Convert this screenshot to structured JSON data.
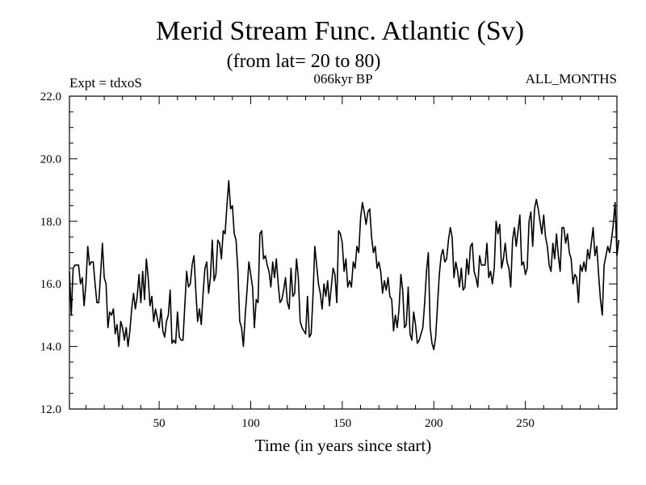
{
  "chart_data": {
    "type": "line",
    "title": "Merid Stream Func. Atlantic (Sv)",
    "subtitle": "(from lat= 20 to 80)",
    "experiment": "Expt = tdxoS",
    "period": "066kyr BP",
    "months": "ALL_MONTHS",
    "xlabel": "Time (in years since start)",
    "ylabel": "",
    "xlim": [
      1,
      300
    ],
    "ylim": [
      12,
      22
    ],
    "x_ticks": [
      50,
      100,
      150,
      200,
      250
    ],
    "y_ticks": [
      12,
      14,
      16,
      18,
      20,
      22
    ],
    "y_tick_labels": [
      "12.0",
      "14.0",
      "16.0",
      "18.0",
      "20.0",
      "22.0"
    ],
    "grid": false,
    "legend": "none",
    "series": [
      {
        "name": "Merid Stream Func.",
        "x_start": 1,
        "x_step": 1,
        "values": [
          16.4,
          15.0,
          16.5,
          16.6,
          16.6,
          16.6,
          16.0,
          16.2,
          15.3,
          16.0,
          17.2,
          16.6,
          16.7,
          16.7,
          16.0,
          15.4,
          15.4,
          16.3,
          17.3,
          16.2,
          16.0,
          14.6,
          15.1,
          15.0,
          15.2,
          14.4,
          14.7,
          14.0,
          14.8,
          14.6,
          14.2,
          14.6,
          14.0,
          14.5,
          15.2,
          15.7,
          15.2,
          15.6,
          16.3,
          15.4,
          16.4,
          15.5,
          16.8,
          16.2,
          15.3,
          15.6,
          14.8,
          15.2,
          14.9,
          14.6,
          15.2,
          14.5,
          14.3,
          14.8,
          15.0,
          15.8,
          14.1,
          14.2,
          14.1,
          15.1,
          14.3,
          14.2,
          14.2,
          15.3,
          16.4,
          15.9,
          16.0,
          16.6,
          16.9,
          15.8,
          14.8,
          15.2,
          14.7,
          15.7,
          16.5,
          16.7,
          15.7,
          16.2,
          17.4,
          16.1,
          16.3,
          17.4,
          17.3,
          16.8,
          17.7,
          17.6,
          18.5,
          19.3,
          18.4,
          18.5,
          17.6,
          17.4,
          16.4,
          14.8,
          14.6,
          14.0,
          15.0,
          15.8,
          16.7,
          16.3,
          15.9,
          14.6,
          15.5,
          15.4,
          17.6,
          17.7,
          16.8,
          16.9,
          16.6,
          16.4,
          15.9,
          16.7,
          16.2,
          16.8,
          16.0,
          15.4,
          15.5,
          15.8,
          16.2,
          15.4,
          15.2,
          16.5,
          15.6,
          15.7,
          16.8,
          16.2,
          14.8,
          14.6,
          14.5,
          14.4,
          15.6,
          14.3,
          14.4,
          15.6,
          17.2,
          16.6,
          16.0,
          15.7,
          15.2,
          16.0,
          15.6,
          16.1,
          15.3,
          15.9,
          16.5,
          16.3,
          15.4,
          17.7,
          17.6,
          17.3,
          16.4,
          16.8,
          15.9,
          16.1,
          15.9,
          16.7,
          16.5,
          17.2,
          17.0,
          18.1,
          18.6,
          18.3,
          17.9,
          18.3,
          18.4,
          17.5,
          17.0,
          17.2,
          16.5,
          16.7,
          16.4,
          15.7,
          16.1,
          15.8,
          16.2,
          15.6,
          15.5,
          14.5,
          15.0,
          14.6,
          15.2,
          16.3,
          15.8,
          14.6,
          14.7,
          15.9,
          14.4,
          14.2,
          15.1,
          14.7,
          14.1,
          14.2,
          14.4,
          14.6,
          15.4,
          16.4,
          17.0,
          14.6,
          14.1,
          13.9,
          14.3,
          15.3,
          16.3,
          16.9,
          17.1,
          16.7,
          16.8,
          17.4,
          17.8,
          17.5,
          16.2,
          16.7,
          16.4,
          15.9,
          16.5,
          15.8,
          15.9,
          16.8,
          16.3,
          17.2,
          17.3,
          16.4,
          16.2,
          15.9,
          16.9,
          16.6,
          16.6,
          16.6,
          17.3,
          16.2,
          16.4,
          16.0,
          16.5,
          18.0,
          17.6,
          17.9,
          16.5,
          16.8,
          17.3,
          16.7,
          16.5,
          15.9,
          17.4,
          17.8,
          17.2,
          17.7,
          18.2,
          16.6,
          16.7,
          16.3,
          16.5,
          18.0,
          18.3,
          17.2,
          18.4,
          18.7,
          18.4,
          18.0,
          17.6,
          18.2,
          17.5,
          17.2,
          16.6,
          16.4,
          17.3,
          16.8,
          17.6,
          16.9,
          16.4,
          17.8,
          17.8,
          17.3,
          17.6,
          17.0,
          16.8,
          16.0,
          16.3,
          16.2,
          15.4,
          16.6,
          16.4,
          16.7,
          16.4,
          17.1,
          16.8,
          17.3,
          17.8,
          16.9,
          17.2,
          16.3,
          15.5,
          15.0,
          16.6,
          16.9,
          17.2,
          17.0,
          17.4,
          17.9,
          18.6,
          16.9,
          17.4
        ]
      }
    ]
  }
}
